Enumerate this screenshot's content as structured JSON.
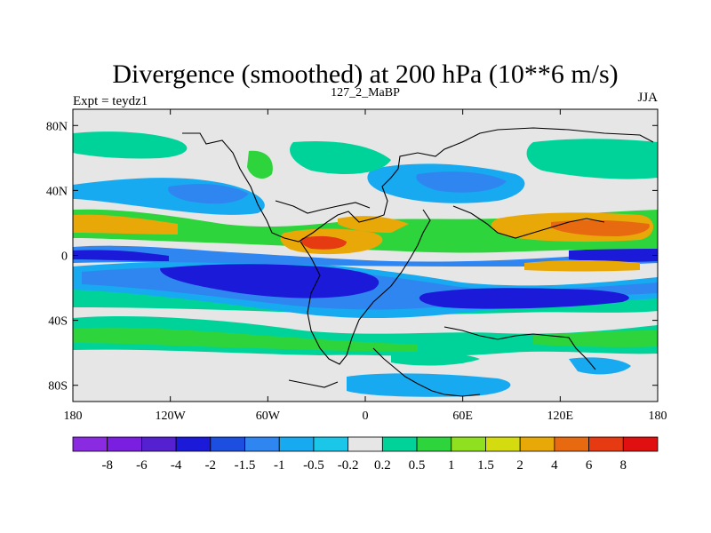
{
  "title": "Divergence (smoothed) at 200 hPa (10**6 m/s)",
  "experiment": "Expt = teydz1",
  "subtitle": "127_2_MaBP",
  "season": "JJA",
  "map": {
    "lat_range": [
      -90,
      90
    ],
    "lon_range": [
      -180,
      180
    ],
    "background_color": "#e6e6e6",
    "lat_ticks": [
      {
        "value": 80,
        "label": "80N"
      },
      {
        "value": 40,
        "label": "40N"
      },
      {
        "value": 0,
        "label": "0"
      },
      {
        "value": -40,
        "label": "40S"
      },
      {
        "value": -80,
        "label": "80S"
      }
    ],
    "lon_ticks": [
      {
        "value": -180,
        "label": "180"
      },
      {
        "value": -120,
        "label": "120W"
      },
      {
        "value": -60,
        "label": "60W"
      },
      {
        "value": 0,
        "label": "0"
      },
      {
        "value": 60,
        "label": "60E"
      },
      {
        "value": 120,
        "label": "120E"
      },
      {
        "value": 180,
        "label": "180"
      }
    ]
  },
  "colorbar": {
    "colors": [
      "#8a2be2",
      "#7a1ee0",
      "#5520d0",
      "#1a1ad8",
      "#1c4fe0",
      "#2f86f0",
      "#18aaf0",
      "#1ac7e8",
      "#e6e6e6",
      "#00d39a",
      "#2ed43c",
      "#8fe01e",
      "#d4dc10",
      "#e8a808",
      "#e86a10",
      "#e63a12",
      "#e01010"
    ],
    "labels": [
      "-8",
      "-6",
      "-4",
      "-2",
      "-1.5",
      "-1",
      "-0.5",
      "-0.2",
      "0.2",
      "0.5",
      "1",
      "1.5",
      "2",
      "4",
      "6",
      "8"
    ]
  },
  "fields": {
    "negative_strong": "#1a1ad8",
    "negative_mid": "#2f86f0",
    "negative_weak": "#1ac7e8",
    "positive_weak": "#00d39a",
    "positive_mid": "#2ed43c",
    "positive_strong": "#e8a808",
    "positive_peak": "#e63a12"
  }
}
